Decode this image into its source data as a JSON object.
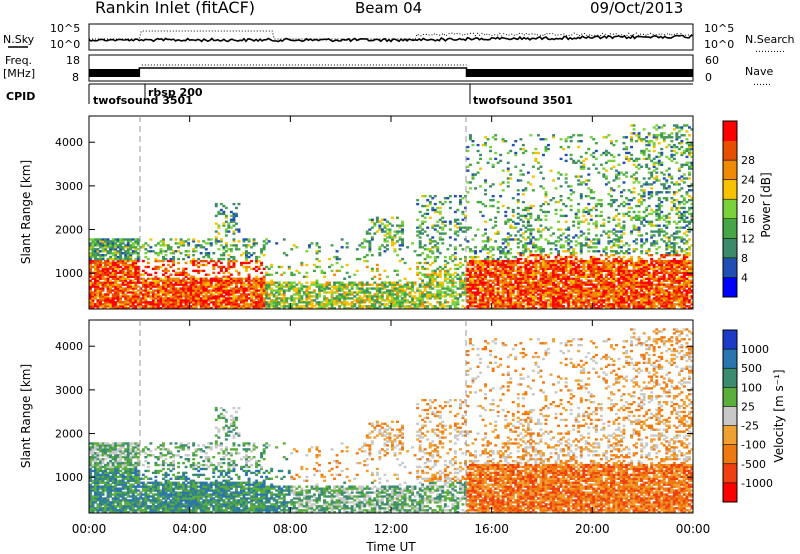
{
  "header": {
    "site": "Rankin Inlet (fitACF)",
    "beam": "Beam 04",
    "date": "09/Oct/2013"
  },
  "noise_panel": {
    "left_label": "N.Sky",
    "right_label": "N.Search",
    "right_legend": "……….",
    "ticks_left": [
      "10^5",
      "10^0"
    ],
    "ticks_right": [
      "10^5",
      "10^0"
    ]
  },
  "freq_panel": {
    "left_label_1": "Freq.",
    "left_label_2": "[MHz]",
    "right_label": "Nave",
    "right_legend": "……",
    "ticks_left": [
      "18",
      "8"
    ],
    "ticks_right": [
      "60",
      "0"
    ]
  },
  "cpid": {
    "label": "CPID",
    "segments": [
      {
        "name": "twofsound 3501",
        "start_h": 0.0,
        "end_h": 2.0
      },
      {
        "name": "rbsp 200",
        "start_h": 2.0,
        "end_h": 15.0
      },
      {
        "name": "twofsound 3501",
        "start_h": 15.0,
        "end_h": 24.0
      }
    ]
  },
  "chart_data": [
    {
      "type": "heatmap",
      "title": "",
      "ylabel": "Slant Range [km]",
      "xlim_h": [
        0,
        24
      ],
      "ylim": [
        180,
        4600
      ],
      "yticks": [
        1000,
        2000,
        3000,
        4000
      ],
      "colorbar": {
        "label": "Power [dB]",
        "ticks": [
          "4",
          "8",
          "12",
          "16",
          "20",
          "24",
          "28"
        ],
        "colors": [
          "#0000ff",
          "#1f4fb4",
          "#3c8a6a",
          "#45a645",
          "#79d23a",
          "#f7c200",
          "#f08a00",
          "#e84e00",
          "#ff0000"
        ]
      }
    },
    {
      "type": "heatmap",
      "title": "",
      "ylabel": "Slant Range [km]",
      "xlabel": "Time UT",
      "xlim_h": [
        0,
        24
      ],
      "ylim": [
        180,
        4600
      ],
      "yticks": [
        1000,
        2000,
        3000,
        4000
      ],
      "xticks": [
        "00:00",
        "04:00",
        "08:00",
        "12:00",
        "16:00",
        "20:00",
        "00:00"
      ],
      "colorbar": {
        "label": "Velocity [m s⁻¹]",
        "ticks": [
          "1000",
          "500",
          "100",
          "25",
          "-25",
          "-100",
          "-500",
          "-1000"
        ],
        "colors": [
          "#1c3cc8",
          "#2a74b0",
          "#3a8c70",
          "#5aae3c",
          "#c8c8c8",
          "#f0a030",
          "#f07810",
          "#f04010",
          "#ff0000"
        ]
      }
    }
  ]
}
